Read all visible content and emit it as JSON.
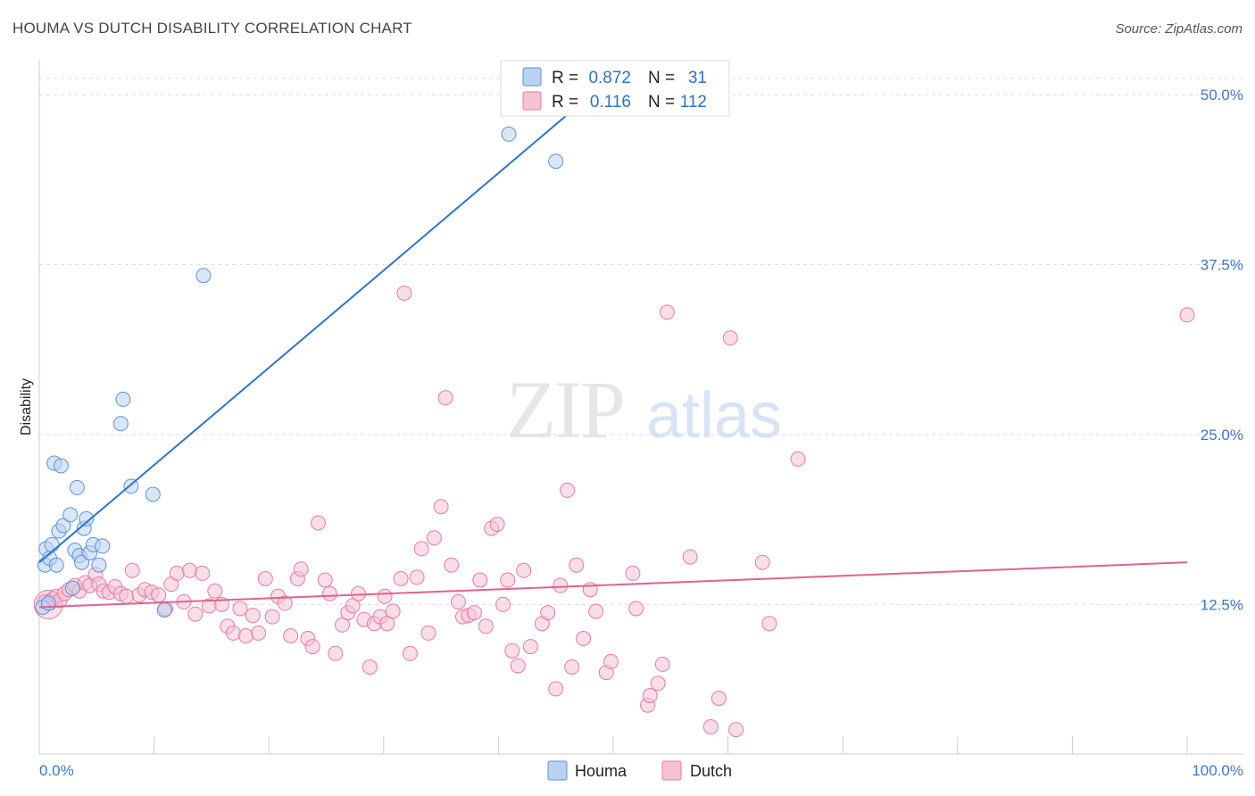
{
  "title": "HOUMA VS DUTCH DISABILITY CORRELATION CHART",
  "source": "Source: ZipAtlas.com",
  "watermark": {
    "zip": "ZIP",
    "atlas": "atlas"
  },
  "colors": {
    "houma": "#5b93d6",
    "houma_fill": "#b8d2f2",
    "houma_line": "#2f74d0",
    "dutch": "#e87aa0",
    "dutch_fill": "#f6c2d4",
    "dutch_line": "#e0628e",
    "axis_text": "#3a78c9",
    "grid": "#dddddd"
  },
  "legend": {
    "rows": [
      {
        "r_label": "R =",
        "r_value": "0.872",
        "n_label": "N =",
        "n_value": "31"
      },
      {
        "r_label": "R =",
        "r_value": "0.116",
        "n_label": "N =",
        "n_value": "112"
      }
    ]
  },
  "chart_data": {
    "type": "scatter",
    "title": "HOUMA VS DUTCH DISABILITY CORRELATION CHART",
    "xlabel": "",
    "ylabel": "Disability",
    "xlim": [
      0,
      100
    ],
    "ylim": [
      1.5,
      52.5
    ],
    "x_tick_labels": [
      "0.0%",
      "100.0%"
    ],
    "y_ticks": [
      12.5,
      25.0,
      37.5,
      50.0
    ],
    "y_tick_labels": [
      "12.5%",
      "25.0%",
      "37.5%",
      "50.0%"
    ],
    "grid": "horizontal dashed",
    "legend_position": "top-center",
    "series": [
      {
        "name": "Houma",
        "r": 0.872,
        "n": 31,
        "trend": {
          "x": [
            0,
            47.5
          ],
          "y": [
            15.6,
            49.6
          ]
        },
        "points": [
          [
            0.5,
            15.4
          ],
          [
            0.6,
            16.6
          ],
          [
            0.9,
            15.9
          ],
          [
            1.1,
            16.9
          ],
          [
            1.3,
            22.9
          ],
          [
            1.5,
            15.4
          ],
          [
            1.7,
            17.9
          ],
          [
            1.9,
            22.7
          ],
          [
            2.1,
            18.3
          ],
          [
            2.7,
            19.1
          ],
          [
            2.9,
            13.7
          ],
          [
            3.1,
            16.5
          ],
          [
            3.3,
            21.1
          ],
          [
            3.5,
            16.1
          ],
          [
            3.7,
            15.6
          ],
          [
            3.9,
            18.1
          ],
          [
            4.1,
            18.8
          ],
          [
            4.4,
            16.3
          ],
          [
            4.7,
            16.9
          ],
          [
            5.2,
            15.4
          ],
          [
            5.5,
            16.8
          ],
          [
            7.3,
            27.6
          ],
          [
            7.1,
            25.8
          ],
          [
            8.0,
            21.2
          ],
          [
            9.9,
            20.6
          ],
          [
            10.9,
            12.1
          ],
          [
            14.3,
            36.7
          ],
          [
            40.9,
            47.1
          ],
          [
            45.0,
            45.1
          ],
          [
            0.3,
            12.3
          ],
          [
            0.8,
            12.6
          ]
        ]
      },
      {
        "name": "Dutch",
        "r": 0.116,
        "n": 112,
        "trend": {
          "x": [
            0,
            100
          ],
          "y": [
            12.3,
            15.6
          ]
        },
        "points": [
          [
            0.5,
            12.7
          ],
          [
            0.9,
            12.6
          ],
          [
            1.2,
            12.9
          ],
          [
            1.5,
            13.1
          ],
          [
            1.8,
            12.8
          ],
          [
            2.2,
            13.3
          ],
          [
            2.6,
            13.6
          ],
          [
            3.1,
            13.9
          ],
          [
            3.5,
            13.5
          ],
          [
            4.0,
            14.1
          ],
          [
            4.4,
            13.9
          ],
          [
            4.9,
            14.7
          ],
          [
            5.2,
            14.0
          ],
          [
            5.6,
            13.5
          ],
          [
            6.1,
            13.4
          ],
          [
            6.6,
            13.8
          ],
          [
            7.1,
            13.3
          ],
          [
            7.6,
            13.1
          ],
          [
            8.1,
            15.0
          ],
          [
            8.7,
            13.2
          ],
          [
            9.2,
            13.6
          ],
          [
            9.8,
            13.4
          ],
          [
            10.4,
            13.2
          ],
          [
            11.0,
            12.2
          ],
          [
            11.5,
            14.0
          ],
          [
            12.0,
            14.8
          ],
          [
            12.6,
            12.7
          ],
          [
            13.1,
            15.0
          ],
          [
            13.6,
            11.8
          ],
          [
            14.2,
            14.8
          ],
          [
            14.8,
            12.4
          ],
          [
            15.3,
            13.5
          ],
          [
            15.9,
            12.5
          ],
          [
            16.4,
            10.9
          ],
          [
            16.9,
            10.4
          ],
          [
            17.5,
            12.2
          ],
          [
            18.0,
            10.2
          ],
          [
            18.6,
            11.7
          ],
          [
            19.1,
            10.4
          ],
          [
            19.7,
            14.4
          ],
          [
            20.3,
            11.6
          ],
          [
            20.8,
            13.1
          ],
          [
            21.4,
            12.6
          ],
          [
            21.9,
            10.2
          ],
          [
            22.5,
            14.4
          ],
          [
            22.8,
            15.1
          ],
          [
            23.4,
            10.0
          ],
          [
            23.8,
            9.4
          ],
          [
            24.3,
            18.5
          ],
          [
            24.9,
            14.3
          ],
          [
            25.3,
            13.3
          ],
          [
            25.8,
            8.9
          ],
          [
            26.4,
            11.0
          ],
          [
            26.9,
            11.9
          ],
          [
            27.3,
            12.4
          ],
          [
            27.8,
            13.3
          ],
          [
            28.3,
            11.4
          ],
          [
            28.8,
            7.9
          ],
          [
            29.2,
            11.1
          ],
          [
            29.7,
            11.6
          ],
          [
            30.3,
            11.1
          ],
          [
            30.8,
            12.0
          ],
          [
            30.1,
            13.1
          ],
          [
            31.5,
            14.4
          ],
          [
            31.8,
            35.4
          ],
          [
            32.3,
            8.9
          ],
          [
            32.9,
            14.5
          ],
          [
            33.3,
            16.6
          ],
          [
            33.9,
            10.4
          ],
          [
            34.4,
            17.4
          ],
          [
            35.0,
            19.7
          ],
          [
            35.4,
            27.7
          ],
          [
            35.9,
            15.4
          ],
          [
            36.5,
            12.7
          ],
          [
            36.9,
            11.6
          ],
          [
            37.4,
            11.7
          ],
          [
            37.9,
            11.9
          ],
          [
            38.4,
            14.3
          ],
          [
            38.9,
            10.9
          ],
          [
            39.4,
            18.1
          ],
          [
            39.9,
            18.4
          ],
          [
            40.4,
            12.5
          ],
          [
            40.8,
            14.3
          ],
          [
            41.2,
            9.1
          ],
          [
            41.7,
            8.0
          ],
          [
            42.2,
            15.0
          ],
          [
            42.8,
            9.4
          ],
          [
            43.8,
            11.1
          ],
          [
            44.3,
            11.9
          ],
          [
            45.0,
            6.3
          ],
          [
            45.4,
            13.9
          ],
          [
            46.0,
            20.9
          ],
          [
            46.4,
            7.9
          ],
          [
            46.8,
            15.4
          ],
          [
            47.4,
            10.0
          ],
          [
            48.0,
            13.6
          ],
          [
            48.5,
            12.0
          ],
          [
            49.4,
            7.5
          ],
          [
            49.8,
            8.3
          ],
          [
            51.7,
            14.8
          ],
          [
            52.0,
            12.2
          ],
          [
            53.0,
            5.1
          ],
          [
            53.2,
            5.8
          ],
          [
            53.9,
            6.7
          ],
          [
            54.3,
            8.1
          ],
          [
            54.7,
            34.0
          ],
          [
            56.7,
            16.0
          ],
          [
            58.5,
            3.5
          ],
          [
            59.2,
            5.6
          ],
          [
            60.2,
            32.1
          ],
          [
            60.7,
            3.3
          ],
          [
            63.0,
            15.6
          ],
          [
            63.6,
            11.1
          ],
          [
            66.1,
            23.2
          ],
          [
            100.0,
            33.8
          ]
        ]
      }
    ]
  }
}
